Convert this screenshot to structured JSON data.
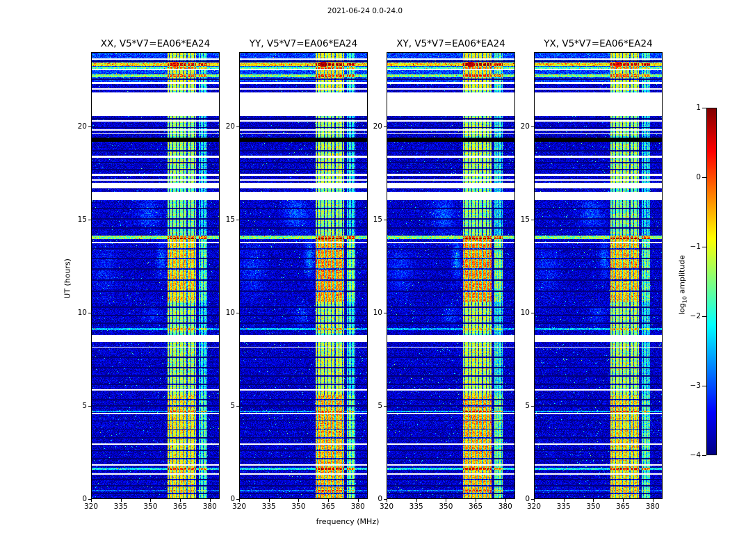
{
  "chart_data": {
    "type": "heatmap",
    "title": "2021-06-24 0.0-24.0",
    "xlabel": "frequency (MHz)",
    "ylabel": "UT (hours)",
    "x_range": [
      320,
      385
    ],
    "y_range": [
      0,
      24
    ],
    "x_ticks": [
      320,
      335,
      350,
      365,
      380
    ],
    "y_ticks": [
      0,
      5,
      10,
      15,
      20
    ],
    "colormap": "jet",
    "colorbar": {
      "label_prefix": "log",
      "label_sub": "10",
      "label_suffix": " amplitude",
      "ticks": [
        1,
        0,
        -1,
        -2,
        -3,
        -4
      ],
      "range": [
        -4,
        1
      ]
    },
    "panels": [
      {
        "title": "XX, V5*V7=EA06*EA24",
        "gain": 0.8,
        "red_spot": 0.35
      },
      {
        "title": "YY, V5*V7=EA06*EA24",
        "gain": 1.0,
        "red_spot": 1.0
      },
      {
        "title": "XY, V5*V7=EA06*EA24",
        "gain": 1.0,
        "red_spot": 1.0
      },
      {
        "title": "YX, V5*V7=EA06*EA24",
        "gain": 0.85,
        "red_spot": 0.55
      }
    ],
    "features": {
      "background_level": -3.65,
      "rfi_band_main": {
        "f0": 358.5,
        "f1": 373.0,
        "base": -2.05,
        "comb_spacing": 1.8,
        "comb_width": 0.38,
        "comb_depth": 1.9
      },
      "rfi_band_secondary": {
        "f0": 374.6,
        "f1": 378.6,
        "base": -2.5
      },
      "activity_windows": [
        [
          0,
          5.6,
          1.05
        ],
        [
          5.6,
          8.4,
          0.6
        ],
        [
          8.9,
          10.6,
          0.55
        ],
        [
          10.6,
          14.05,
          1.15
        ],
        [
          14.2,
          16.0,
          0.4
        ],
        [
          16.0,
          17.0,
          0.3
        ],
        [
          17.0,
          19.2,
          0.55
        ],
        [
          19.5,
          20.55,
          0.5
        ],
        [
          20.55,
          21.9,
          0.3
        ],
        [
          21.9,
          24,
          0.75
        ]
      ],
      "white_gaps": [
        [
          23.58,
          23.68
        ],
        [
          23.02,
          23.1
        ],
        [
          22.3,
          22.4
        ],
        [
          22.0,
          22.06
        ],
        [
          20.55,
          21.82
        ],
        [
          20.28,
          20.35
        ],
        [
          19.78,
          19.86
        ],
        [
          19.58,
          19.65
        ],
        [
          18.32,
          18.44
        ],
        [
          17.34,
          17.48
        ],
        [
          17.1,
          17.17
        ],
        [
          16.7,
          17.0
        ],
        [
          16.05,
          16.5
        ],
        [
          13.72,
          13.8
        ],
        [
          8.45,
          8.8
        ],
        [
          8.12,
          8.18
        ],
        [
          5.84,
          5.9
        ],
        [
          4.56,
          4.64
        ],
        [
          2.9,
          2.97
        ],
        [
          1.78,
          1.88
        ],
        [
          1.32,
          1.38
        ]
      ],
      "black_rows": [
        [
          19.2,
          19.42
        ]
      ],
      "dark_lines": [
        23.5,
        22.55,
        20.42,
        19.95,
        18.7,
        18.05,
        17.7,
        15.6,
        15.05,
        14.55,
        13.45,
        12.9,
        12.35,
        11.75,
        11.15,
        10.3,
        9.85,
        9.45,
        7.6,
        7.05,
        6.6,
        6.15,
        5.35,
        5.0,
        4.2,
        3.75,
        3.3,
        2.6,
        2.15,
        1.05,
        0.7,
        0.3
      ],
      "bright_rows": [
        [
          23.35,
          0.1,
          2.3
        ],
        [
          23.17,
          0.06,
          1.3
        ],
        [
          22.72,
          0.08,
          1.6
        ],
        [
          14.05,
          0.09,
          2.1
        ],
        [
          9.12,
          0.06,
          1.1
        ],
        [
          4.7,
          0.05,
          1.2
        ],
        [
          1.62,
          0.07,
          1.5
        ],
        [
          0.45,
          0.04,
          0.8
        ]
      ],
      "red_spot": {
        "hour": 23.35,
        "freq": 362.5
      },
      "smudges": [
        {
          "hour": 15.3,
          "freq": 349.0,
          "amp": 0.7,
          "fw": 5.5,
          "hw": 0.9
        },
        {
          "hour": 12.3,
          "freq": 327.0,
          "amp": 0.45,
          "fw": 6.0,
          "hw": 1.3
        },
        {
          "hour": 12.9,
          "freq": 355.5,
          "amp": 0.85,
          "fw": 2.2,
          "hw": 1.0
        },
        {
          "hour": 9.9,
          "freq": 352.0,
          "amp": 0.5,
          "fw": 4.0,
          "hw": 0.5
        }
      ],
      "top_bg_boost": {
        "from_hour": 22.4,
        "amp": 0.55
      }
    }
  }
}
